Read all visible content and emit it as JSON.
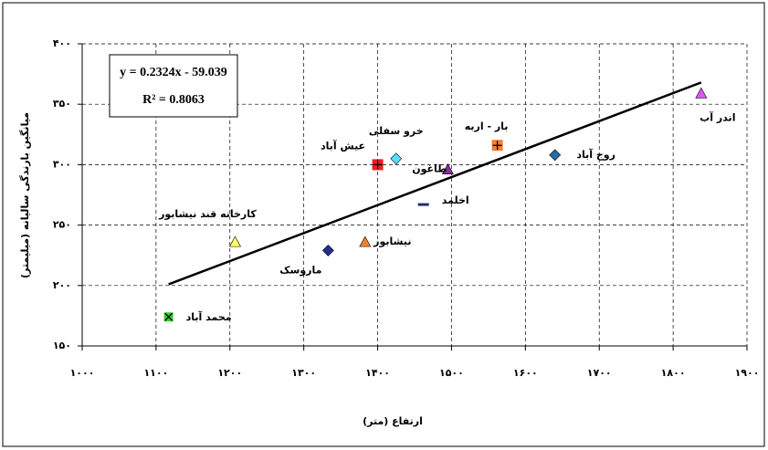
{
  "chart_data": {
    "type": "scatter",
    "x_label": "ارتفاع (متر)",
    "y_label": "میانگین بارندگی سالیانه (میلیمتر)",
    "equation": "y = 0.2324x - 59.039",
    "r_squared": "R² = 0.8063",
    "xlim": [
      1000,
      1900
    ],
    "xticks": [
      {
        "value": 1000,
        "label": "۱۰۰۰"
      },
      {
        "value": 1100,
        "label": "۱۱۰۰"
      },
      {
        "value": 1200,
        "label": "۱۲۰۰"
      },
      {
        "value": 1300,
        "label": "۱۳۰۰"
      },
      {
        "value": 1400,
        "label": "۱۴۰۰"
      },
      {
        "value": 1500,
        "label": "۱۵۰۰"
      },
      {
        "value": 1600,
        "label": "۱۶۰۰"
      },
      {
        "value": 1700,
        "label": "۱۷۰۰"
      },
      {
        "value": 1800,
        "label": "۱۸۰۰"
      },
      {
        "value": 1900,
        "label": "۱۹۰۰"
      }
    ],
    "ylim": [
      150,
      400
    ],
    "yticks": [
      {
        "value": 150,
        "label": "۱۵۰"
      },
      {
        "value": 200,
        "label": "۲۰۰"
      },
      {
        "value": 250,
        "label": "۲۵۰"
      },
      {
        "value": 300,
        "label": "۳۰۰"
      },
      {
        "value": 350,
        "label": "۳۵۰"
      },
      {
        "value": 400,
        "label": "۴۰۰"
      }
    ],
    "grid": true,
    "series": [
      {
        "name": "محمد آباد",
        "color": "#33cc33",
        "marker": "square-x",
        "x": [
          1117
        ],
        "values": [
          174
        ]
      },
      {
        "name": "کارخانه قند نیشابور",
        "color": "#ffff66",
        "marker": "triangle",
        "x": [
          1207
        ],
        "values": [
          236
        ]
      },
      {
        "name": "ماروسک",
        "color": "#1f2f8f",
        "marker": "diamond",
        "x": [
          1333
        ],
        "values": [
          229
        ]
      },
      {
        "name": "نیشابور",
        "color": "#f07f30",
        "marker": "triangle",
        "x": [
          1383
        ],
        "values": [
          236
        ]
      },
      {
        "name": "عیش آباد",
        "color": "#ee1c24",
        "marker": "square-plus",
        "x": [
          1400
        ],
        "values": [
          300
        ]
      },
      {
        "name": "خرو سفلی",
        "color": "#55ddff",
        "marker": "diamond",
        "x": [
          1425
        ],
        "values": [
          305
        ]
      },
      {
        "name": "طاغون",
        "color": "#8a2b9e",
        "marker": "triangle",
        "x": [
          1495
        ],
        "values": [
          296
        ]
      },
      {
        "name": "اخلمد",
        "color": "#1f2f6f",
        "marker": "dash",
        "x": [
          1462
        ],
        "values": [
          267
        ]
      },
      {
        "name": "بار - اربه",
        "color": "#f07f30",
        "marker": "square-plus",
        "x": [
          1562
        ],
        "values": [
          316
        ]
      },
      {
        "name": "روج آباد",
        "color": "#2a6a9e",
        "marker": "diamond",
        "x": [
          1640
        ],
        "values": [
          308
        ]
      },
      {
        "name": "اندر آب",
        "color": "#dd55ee",
        "marker": "triangle",
        "x": [
          1838
        ],
        "values": [
          359
        ]
      }
    ],
    "trendline": {
      "color": "#000000",
      "x": [
        1117,
        1838
      ],
      "values": [
        201,
        368
      ]
    }
  }
}
